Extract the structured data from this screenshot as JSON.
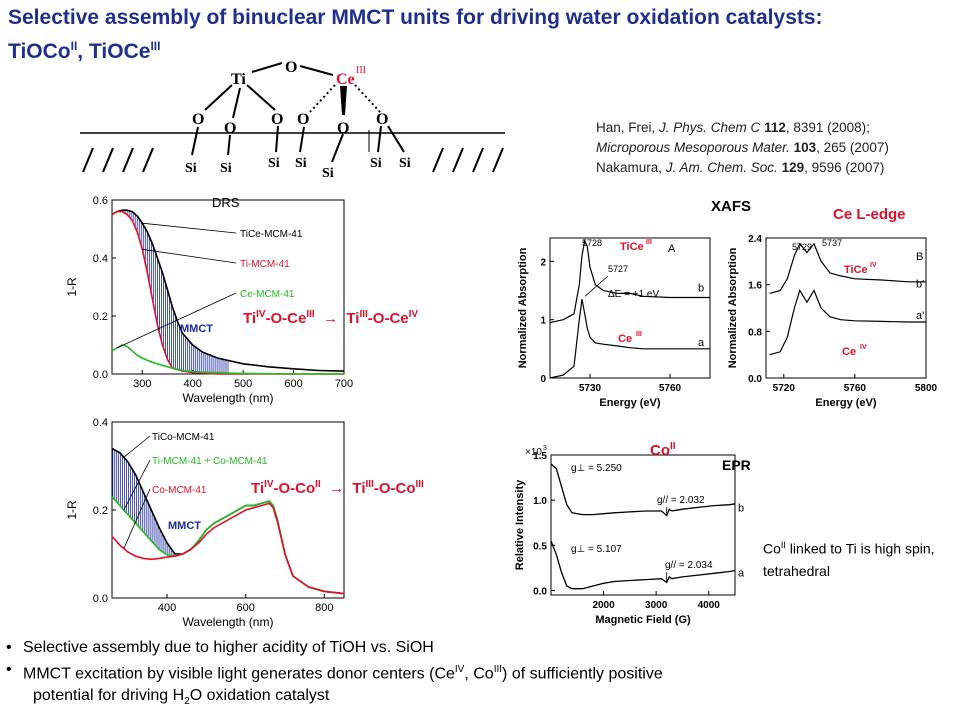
{
  "slide": {
    "title_line1": "Selective assembly of binuclear MMCT units for driving water oxidation catalysts:",
    "title_line2_a": "TiOCo",
    "title_line2_sup_a": "II",
    "title_line2_b": ", TiOCe",
    "title_line2_sup_b": "III"
  },
  "structure": {
    "ti": "Ti",
    "ce": "Ce",
    "ce_sup": "III",
    "o": "O",
    "si": "Si"
  },
  "references": {
    "r1_a": "Han, Frei, ",
    "r1_journal": "J. Phys. Chem C",
    "r1_vol": " 112",
    "r1_rest": ", 8391 (2008);",
    "r2_journal": "Microporous Mesoporous Mater.",
    "r2_vol": " 103",
    "r2_rest": ", 265 (2007)",
    "r3_a": "Nakamura, ",
    "r3_journal": "J. Am. Chem. Soc.",
    "r3_vol": " 129",
    "r3_rest": ", 9596 (2007)"
  },
  "labels": {
    "ce_mmct": {
      "a": "Ti",
      "a_sup": "IV",
      "b": "-O-Ce",
      "b_sup": "III",
      "arrow": "→",
      "c": "Ti",
      "c_sup": "III",
      "d": "-O-Ce",
      "d_sup": "IV"
    },
    "co_mmct": {
      "a": "Ti",
      "a_sup": "IV",
      "b": "-O-Co",
      "b_sup": "II",
      "arrow": "→",
      "c": "Ti",
      "c_sup": "III",
      "d": "-O-Co",
      "d_sup": "III"
    },
    "xafs": "XAFS",
    "ce_ledge": "Ce L-edge",
    "co_ii": "Co",
    "co_ii_sup": "II",
    "epr": "EPR"
  },
  "note": {
    "a": "Co",
    "a_sup": "II",
    "b": " linked to Ti is high spin, tetrahedral"
  },
  "bullets": {
    "b1": "Selective assembly due to higher acidity of TiOH vs. SiOH",
    "b2_a": "MMCT excitation by visible light generates donor centers (Ce",
    "b2_sup1": "IV",
    "b2_b": ", Co",
    "b2_sup2": "III",
    "b2_c": ") of sufficiently positive",
    "b3_a": "potential for driving H",
    "b3_sub": "2",
    "b3_b": "O oxidation catalyst"
  },
  "chart_data": [
    {
      "type": "line",
      "title": "DRS",
      "xlabel": "Wavelength (nm)",
      "ylabel": "1-R",
      "xlim": [
        240,
        700
      ],
      "ylim": [
        0,
        0.6
      ],
      "xticks": [
        "300",
        "400",
        "500",
        "600",
        "700"
      ],
      "yticks": [
        "0.0",
        "0.2",
        "0.4",
        "0.6"
      ],
      "shaded_region_label": "MMCT",
      "series": [
        {
          "name": "TiCe-MCM-41",
          "color": "#000000",
          "x": [
            240,
            250,
            260,
            270,
            280,
            290,
            300,
            310,
            320,
            330,
            340,
            350,
            360,
            370,
            380,
            400,
            420,
            450,
            500,
            550,
            600,
            650,
            700
          ],
          "y": [
            0.55,
            0.56,
            0.565,
            0.565,
            0.56,
            0.545,
            0.52,
            0.49,
            0.45,
            0.4,
            0.35,
            0.29,
            0.23,
            0.18,
            0.14,
            0.1,
            0.075,
            0.055,
            0.035,
            0.025,
            0.018,
            0.012,
            0.01
          ]
        },
        {
          "name": "Ti-MCM-41",
          "color": "#e0102a",
          "x": [
            240,
            250,
            260,
            270,
            280,
            290,
            300,
            310,
            320,
            330,
            340,
            350,
            360,
            380,
            400,
            450,
            500,
            600,
            700
          ],
          "y": [
            0.55,
            0.56,
            0.56,
            0.55,
            0.53,
            0.49,
            0.43,
            0.35,
            0.26,
            0.17,
            0.1,
            0.05,
            0.02,
            0.01,
            0.005,
            0.0,
            0.0,
            0.0,
            0.0
          ]
        },
        {
          "name": "Ce-MCM-41",
          "color": "#22bb22",
          "x": [
            240,
            250,
            260,
            270,
            280,
            290,
            300,
            320,
            340,
            360,
            380,
            400,
            450,
            500,
            600,
            700
          ],
          "y": [
            0.08,
            0.09,
            0.1,
            0.095,
            0.08,
            0.065,
            0.055,
            0.04,
            0.03,
            0.02,
            0.012,
            0.008,
            0.004,
            0.002,
            0.0,
            0.0
          ]
        }
      ]
    },
    {
      "type": "line",
      "xlabel": "Wavelength (nm)",
      "ylabel": "1-R",
      "xlim": [
        260,
        850
      ],
      "ylim": [
        0,
        0.4
      ],
      "xticks": [
        "400",
        "600",
        "800"
      ],
      "yticks": [
        "0.0",
        "0.2",
        "0.4"
      ],
      "shaded_region_label": "MMCT",
      "series": [
        {
          "name": "TiCo-MCM-41",
          "color": "#000000",
          "x": [
            260,
            280,
            300,
            320,
            340,
            360,
            380,
            400,
            420,
            440,
            460,
            480,
            500,
            520,
            540,
            560,
            580,
            600,
            620,
            640,
            660,
            670,
            680,
            700,
            720,
            760,
            800,
            850
          ],
          "y": [
            0.34,
            0.33,
            0.31,
            0.28,
            0.24,
            0.2,
            0.16,
            0.125,
            0.1,
            0.1,
            0.11,
            0.13,
            0.155,
            0.17,
            0.18,
            0.19,
            0.2,
            0.21,
            0.21,
            0.215,
            0.22,
            0.21,
            0.18,
            0.1,
            0.05,
            0.025,
            0.015,
            0.01
          ]
        },
        {
          "name": "Ti-MCM-41 + Co-MCM-41",
          "color": "#22bb22",
          "x": [
            260,
            280,
            300,
            320,
            340,
            360,
            380,
            400,
            420,
            440,
            460,
            480,
            500,
            520,
            540,
            560,
            580,
            600,
            620,
            640,
            660,
            670,
            680,
            700,
            720,
            760,
            800,
            850
          ],
          "y": [
            0.23,
            0.21,
            0.19,
            0.17,
            0.15,
            0.13,
            0.11,
            0.098,
            0.095,
            0.1,
            0.11,
            0.13,
            0.155,
            0.17,
            0.18,
            0.19,
            0.2,
            0.21,
            0.21,
            0.215,
            0.22,
            0.21,
            0.18,
            0.1,
            0.05,
            0.025,
            0.015,
            0.01
          ]
        },
        {
          "name": "Co-MCM-41",
          "color": "#e0102a",
          "x": [
            260,
            280,
            300,
            320,
            340,
            360,
            380,
            400,
            420,
            440,
            460,
            480,
            500,
            520,
            540,
            560,
            580,
            600,
            620,
            640,
            660,
            670,
            680,
            700,
            720,
            760,
            800,
            850
          ],
          "y": [
            0.14,
            0.12,
            0.105,
            0.095,
            0.09,
            0.088,
            0.09,
            0.093,
            0.095,
            0.1,
            0.11,
            0.125,
            0.145,
            0.16,
            0.17,
            0.18,
            0.19,
            0.2,
            0.205,
            0.21,
            0.215,
            0.205,
            0.175,
            0.1,
            0.05,
            0.025,
            0.015,
            0.01
          ]
        }
      ]
    },
    {
      "type": "line",
      "panel_label": "A",
      "xlabel": "Energy (eV)",
      "ylabel": "Normalized Absorption",
      "xlim": [
        5715,
        5775
      ],
      "ylim": [
        0,
        2.4
      ],
      "xticks": [
        "5730",
        "5760"
      ],
      "yticks": [
        "0",
        "1",
        "2"
      ],
      "annotations": [
        "5728",
        "5727",
        "ΔE = +1 eV"
      ],
      "series": [
        {
          "name": "TiCe",
          "name_sup": "III",
          "trace_label": "b",
          "color": "#000000",
          "x": [
            5715,
            5720,
            5724,
            5726,
            5727,
            5728,
            5729,
            5730,
            5732,
            5735,
            5740,
            5745,
            5750,
            5760,
            5770,
            5775
          ],
          "y": [
            0.95,
            1.0,
            1.1,
            1.6,
            2.1,
            2.35,
            2.25,
            1.9,
            1.6,
            1.5,
            1.45,
            1.45,
            1.4,
            1.38,
            1.38,
            1.38
          ]
        },
        {
          "name": "Ce",
          "name_sup": "III",
          "trace_label": "a",
          "color": "#000000",
          "x": [
            5715,
            5720,
            5724,
            5726,
            5727,
            5728,
            5729,
            5730,
            5732,
            5735,
            5740,
            5745,
            5750,
            5760,
            5770,
            5775
          ],
          "y": [
            0.0,
            0.05,
            0.2,
            1.0,
            1.35,
            1.1,
            0.85,
            0.7,
            0.6,
            0.58,
            0.55,
            0.52,
            0.5,
            0.5,
            0.5,
            0.5
          ]
        }
      ]
    },
    {
      "type": "line",
      "panel_label": "B",
      "xlabel": "Energy (eV)",
      "ylabel": "Normalized Absorption",
      "xlim": [
        5710,
        5800
      ],
      "ylim": [
        0,
        2.4
      ],
      "xticks": [
        "5720",
        "5760",
        "5800"
      ],
      "yticks": [
        "0.0",
        "0.8",
        "1.6",
        "2.4"
      ],
      "annotations": [
        "5729",
        "5737"
      ],
      "series": [
        {
          "name": "TiCe",
          "name_sup": "IV",
          "trace_label": "b'",
          "color": "#000000",
          "x": [
            5712,
            5718,
            5722,
            5726,
            5729,
            5733,
            5737,
            5741,
            5746,
            5752,
            5760,
            5775,
            5790,
            5800
          ],
          "y": [
            1.45,
            1.5,
            1.7,
            2.1,
            2.3,
            2.15,
            2.3,
            2.0,
            1.8,
            1.75,
            1.7,
            1.68,
            1.65,
            1.65
          ]
        },
        {
          "name": "Ce",
          "name_sup": "IV",
          "trace_label": "a'",
          "color": "#000000",
          "x": [
            5712,
            5718,
            5722,
            5726,
            5729,
            5733,
            5737,
            5741,
            5746,
            5752,
            5760,
            5775,
            5790,
            5800
          ],
          "y": [
            0.4,
            0.45,
            0.7,
            1.2,
            1.5,
            1.3,
            1.5,
            1.2,
            1.05,
            1.0,
            0.98,
            0.97,
            0.96,
            0.96
          ]
        }
      ]
    },
    {
      "type": "line",
      "xlabel": "Magnetic Field (G)",
      "ylabel": "Relative Intensity",
      "y_multiplier": "×10",
      "y_multiplier_exp": "3",
      "xlim": [
        1000,
        4500
      ],
      "ylim": [
        -0.05,
        1.5
      ],
      "xticks": [
        "2000",
        "3000",
        "4000"
      ],
      "yticks": [
        "0.0",
        "0.5",
        "1.0",
        "1.5"
      ],
      "annotations": [
        "g⊥ = 5.250",
        "g// = 2.032",
        "g⊥ = 5.107",
        "g// = 2.034"
      ],
      "series": [
        {
          "trace_label": "b",
          "color": "#000000",
          "x": [
            1000,
            1100,
            1200,
            1300,
            1400,
            1600,
            1800,
            2000,
            2200,
            2500,
            2800,
            3100,
            3200,
            3250,
            3300,
            3500,
            3800,
            4100,
            4400,
            4500
          ],
          "y": [
            1.4,
            1.35,
            1.15,
            0.95,
            0.86,
            0.84,
            0.84,
            0.85,
            0.86,
            0.87,
            0.88,
            0.88,
            0.83,
            0.9,
            0.88,
            0.9,
            0.92,
            0.94,
            0.95,
            0.96
          ]
        },
        {
          "trace_label": "a",
          "color": "#000000",
          "x": [
            1000,
            1100,
            1200,
            1300,
            1400,
            1600,
            1800,
            2000,
            2200,
            2500,
            2800,
            3100,
            3200,
            3250,
            3300,
            3500,
            3800,
            4100,
            4400,
            4500
          ],
          "y": [
            0.55,
            0.4,
            0.2,
            0.05,
            0.02,
            0.02,
            0.05,
            0.08,
            0.1,
            0.11,
            0.12,
            0.13,
            0.09,
            0.15,
            0.13,
            0.15,
            0.17,
            0.19,
            0.21,
            0.22
          ]
        }
      ]
    }
  ]
}
